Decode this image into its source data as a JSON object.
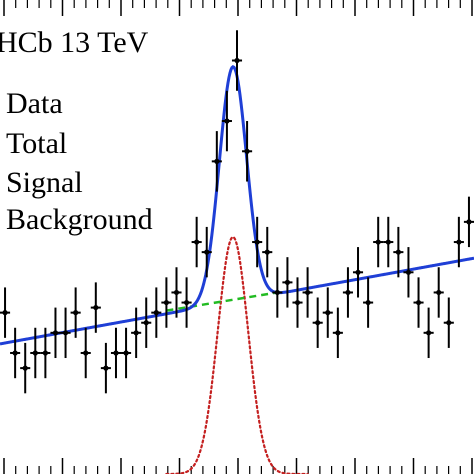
{
  "chart_data": {
    "type": "line",
    "title": "",
    "annotation": "HCb 13 TeV",
    "xlabel": "",
    "ylabel": "",
    "xlim": [
      0.5,
      47.5
    ],
    "ylim": [
      0,
      47
    ],
    "grid": false,
    "legend": {
      "placement": "top-left",
      "entries": [
        {
          "label": "Data",
          "style": "points-with-errors",
          "color": "#000000"
        },
        {
          "label": "Total",
          "style": "solid",
          "color": "#1f3fd6"
        },
        {
          "label": "Signal",
          "style": "dotted",
          "color": "#c42020"
        },
        {
          "label": "Background",
          "style": "dashed",
          "color": "#22bb22"
        }
      ]
    },
    "series": [
      {
        "name": "Data",
        "kind": "points",
        "x": [
          1,
          2,
          3,
          4,
          5,
          6,
          7,
          8,
          9,
          10,
          11,
          12,
          13,
          14,
          15,
          16,
          17,
          18,
          19,
          20,
          21,
          22,
          23,
          24,
          25,
          26,
          27,
          28,
          29,
          30,
          31,
          32,
          33,
          34,
          35,
          36,
          37,
          38,
          39,
          40,
          41,
          42,
          43,
          44,
          45,
          46,
          47
        ],
        "y": [
          16,
          12,
          10.5,
          12,
          12,
          14,
          14,
          16,
          12,
          16.5,
          10.5,
          12,
          12,
          14,
          15,
          16,
          17,
          18,
          17,
          23,
          22,
          31,
          35,
          41,
          32,
          23,
          22,
          18,
          19,
          17,
          18,
          15,
          16,
          14,
          18,
          20,
          17,
          23,
          23,
          22,
          20,
          17,
          14,
          18,
          15,
          23,
          25
        ],
        "err": [
          2.5,
          2.5,
          2.5,
          2.5,
          2.5,
          2.5,
          2.5,
          2.5,
          2.5,
          2.5,
          2.5,
          2.5,
          2.5,
          2.5,
          2.5,
          2.5,
          2.5,
          2.5,
          2.5,
          2.5,
          2.5,
          3,
          3,
          3,
          3,
          2.5,
          2.5,
          2.5,
          2.5,
          2.5,
          2.5,
          2.5,
          2.5,
          2.5,
          2.5,
          2.5,
          2.5,
          2.5,
          2.5,
          2.5,
          2.5,
          2.5,
          2.5,
          2.5,
          2.5,
          2.5,
          2.5
        ]
      },
      {
        "name": "Background",
        "kind": "dashed",
        "x": [
          17,
          28
        ],
        "y": [
          16.2,
          18.0
        ]
      },
      {
        "name": "Total",
        "kind": "solid",
        "x": [
          0.5,
          47.5
        ],
        "y": [
          12.9,
          21.4
        ],
        "peak": {
          "center": 23.6,
          "sigma": 1.35,
          "amplitude": 23.3
        }
      },
      {
        "name": "Signal",
        "kind": "dotted",
        "x": [
          17,
          31
        ],
        "y": [
          0,
          0
        ],
        "peak": {
          "center": 23.6,
          "sigma": 1.5,
          "amplitude": 23.5
        }
      }
    ]
  }
}
